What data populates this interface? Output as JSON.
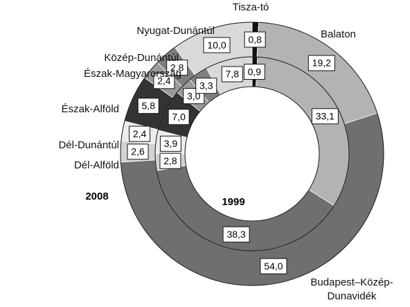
{
  "chart_data": {
    "type": "donut",
    "categories": [
      "Tisza-tó",
      "Balaton",
      "Budapest–Közép-Dunavidék",
      "Dél-Alföld",
      "Dél-Dunántúl",
      "Észak-Alföld",
      "Észak-Magyarország",
      "Közép-Dunántúl",
      "Nyugat-Dunántúl"
    ],
    "colors": [
      "#111111",
      "#b3b3b3",
      "#6f6f6f",
      "#d2d2d2",
      "#ececec",
      "#333333",
      "#9a9a9a",
      "#7f7f7f",
      "#d9d9d9"
    ],
    "series": [
      {
        "name": "2008",
        "values": [
          0.8,
          19.2,
          54.0,
          2.6,
          2.4,
          5.8,
          2.4,
          2.8,
          10.0
        ],
        "value_labels": [
          "0,8",
          "19,2",
          "54,0",
          "2,6",
          "2,4",
          "5,8",
          "2,4",
          "2,8",
          "10,0"
        ]
      },
      {
        "name": "1999",
        "values": [
          0.9,
          33.1,
          38.3,
          2.8,
          3.9,
          7.0,
          3.0,
          3.3,
          7.8
        ],
        "value_labels": [
          "0,9",
          "33,1",
          "38,3",
          "2,8",
          "3,9",
          "7,0",
          "3,0",
          "3,3",
          "7,8"
        ]
      }
    ]
  }
}
